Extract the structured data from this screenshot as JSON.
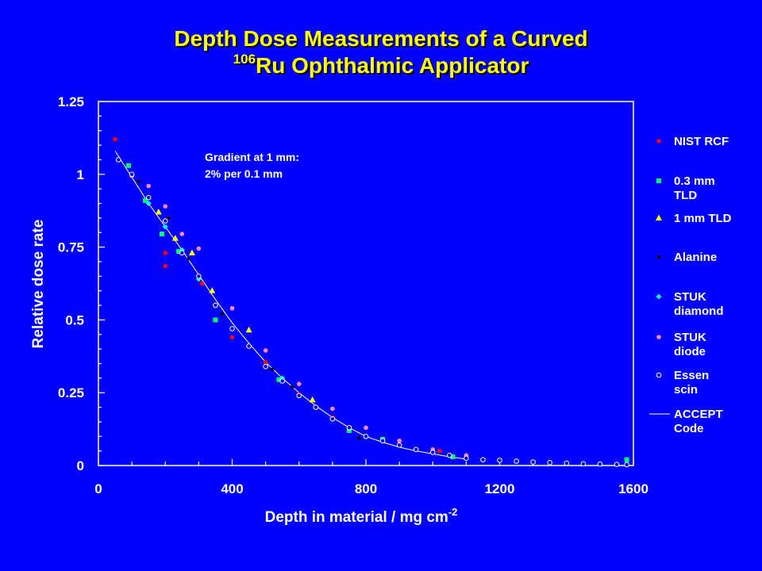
{
  "title": {
    "line1": "Depth Dose Measurements of a Curved",
    "line2_sup": "106",
    "line2_rest": "Ru Ophthalmic Applicator"
  },
  "chart_data": {
    "type": "scatter",
    "title": "Depth Dose Measurements of a Curved 106Ru Ophthalmic Applicator",
    "xlabel": "Depth in material / mg cm",
    "xlabel_sup": "-2",
    "ylabel": "Relative dose rate",
    "xlim": [
      0,
      1600
    ],
    "ylim": [
      0,
      1.25
    ],
    "xticks": [
      "0",
      "400",
      "800",
      "1200",
      "1600"
    ],
    "yticks": [
      "0",
      "0.25",
      "0.5",
      "0.75",
      "1",
      "1.25"
    ],
    "annotation": [
      "Gradient at 1 mm:",
      "2% per 0.1 mm"
    ],
    "legend_position": "right",
    "series": [
      {
        "name": [
          "NIST RCF"
        ],
        "marker": "circle",
        "color": "#ff0000",
        "points": [
          [
            50,
            1.12
          ],
          [
            200,
            0.73
          ],
          [
            200,
            0.685
          ],
          [
            310,
            0.625
          ],
          [
            400,
            0.44
          ],
          [
            500,
            0.355
          ],
          [
            600,
            0.245
          ],
          [
            700,
            0.165
          ],
          [
            850,
            0.09
          ],
          [
            1020,
            0.05
          ],
          [
            1100,
            0.03
          ]
        ]
      },
      {
        "name": [
          "0.3 mm",
          "TLD"
        ],
        "marker": "square",
        "color": "#00ff66",
        "points": [
          [
            90,
            1.03
          ],
          [
            140,
            0.91
          ],
          [
            190,
            0.795
          ],
          [
            240,
            0.735
          ],
          [
            350,
            0.5
          ],
          [
            540,
            0.295
          ],
          [
            750,
            0.12
          ],
          [
            850,
            0.09
          ],
          [
            1060,
            0.03
          ],
          [
            1580,
            0.02
          ]
        ]
      },
      {
        "name": [
          "1 mm TLD"
        ],
        "marker": "triangle",
        "color": "#ffff00",
        "points": [
          [
            180,
            0.87
          ],
          [
            230,
            0.78
          ],
          [
            280,
            0.73
          ],
          [
            340,
            0.6
          ],
          [
            450,
            0.465
          ],
          [
            640,
            0.225
          ]
        ]
      },
      {
        "name": [
          "Alanine"
        ],
        "marker": "dot",
        "color": "#000000",
        "points": [
          [
            120,
            0.975
          ],
          [
            210,
            0.85
          ],
          [
            270,
            0.71
          ],
          [
            370,
            0.52
          ],
          [
            520,
            0.33
          ],
          [
            580,
            0.27
          ],
          [
            780,
            0.095
          ],
          [
            1050,
            0.035
          ]
        ]
      },
      {
        "name": [
          "STUK",
          "diamond"
        ],
        "marker": "diamond",
        "color": "#00ffff",
        "points": [
          [
            150,
            0.9
          ],
          [
            200,
            0.82
          ],
          [
            250,
            0.74
          ],
          [
            300,
            0.64
          ],
          [
            350,
            0.55
          ],
          [
            450,
            0.41
          ],
          [
            550,
            0.3
          ],
          [
            650,
            0.2
          ],
          [
            750,
            0.13
          ],
          [
            850,
            0.085
          ]
        ]
      },
      {
        "name": [
          "STUK",
          "diode"
        ],
        "marker": "circle",
        "color": "#ff88bb",
        "points": [
          [
            100,
            0.995
          ],
          [
            150,
            0.96
          ],
          [
            200,
            0.89
          ],
          [
            250,
            0.795
          ],
          [
            300,
            0.745
          ],
          [
            400,
            0.54
          ],
          [
            500,
            0.395
          ],
          [
            600,
            0.28
          ],
          [
            700,
            0.195
          ],
          [
            800,
            0.13
          ],
          [
            900,
            0.085
          ],
          [
            1000,
            0.055
          ],
          [
            1100,
            0.035
          ]
        ]
      },
      {
        "name": [
          "Essen",
          "scin"
        ],
        "marker": "open-circle",
        "color": "#ffffff",
        "points": [
          [
            60,
            1.05
          ],
          [
            100,
            1.0
          ],
          [
            150,
            0.92
          ],
          [
            200,
            0.84
          ],
          [
            250,
            0.73
          ],
          [
            300,
            0.65
          ],
          [
            350,
            0.55
          ],
          [
            400,
            0.47
          ],
          [
            450,
            0.41
          ],
          [
            500,
            0.34
          ],
          [
            550,
            0.29
          ],
          [
            600,
            0.24
          ],
          [
            650,
            0.2
          ],
          [
            700,
            0.16
          ],
          [
            750,
            0.13
          ],
          [
            800,
            0.1
          ],
          [
            850,
            0.085
          ],
          [
            900,
            0.07
          ],
          [
            950,
            0.055
          ],
          [
            1000,
            0.045
          ],
          [
            1050,
            0.035
          ],
          [
            1100,
            0.025
          ],
          [
            1150,
            0.02
          ],
          [
            1200,
            0.018
          ],
          [
            1250,
            0.015
          ],
          [
            1300,
            0.012
          ],
          [
            1350,
            0.01
          ],
          [
            1400,
            0.008
          ],
          [
            1450,
            0.006
          ],
          [
            1500,
            0.005
          ],
          [
            1550,
            0.004
          ],
          [
            1580,
            0.003
          ]
        ]
      },
      {
        "name": [
          "ACCEPT",
          "Code"
        ],
        "marker": "line",
        "color": "#ffffff",
        "points": [
          [
            50,
            1.08
          ],
          [
            100,
            0.99
          ],
          [
            150,
            0.9
          ],
          [
            200,
            0.82
          ],
          [
            250,
            0.74
          ],
          [
            300,
            0.655
          ],
          [
            350,
            0.57
          ],
          [
            400,
            0.49
          ],
          [
            450,
            0.42
          ],
          [
            500,
            0.355
          ],
          [
            550,
            0.3
          ],
          [
            600,
            0.25
          ],
          [
            650,
            0.205
          ],
          [
            700,
            0.165
          ],
          [
            750,
            0.13
          ],
          [
            800,
            0.1
          ],
          [
            850,
            0.08
          ],
          [
            900,
            0.063
          ],
          [
            950,
            0.05
          ],
          [
            1000,
            0.04
          ],
          [
            1050,
            0.03
          ],
          [
            1100,
            0.022
          ]
        ]
      }
    ]
  }
}
